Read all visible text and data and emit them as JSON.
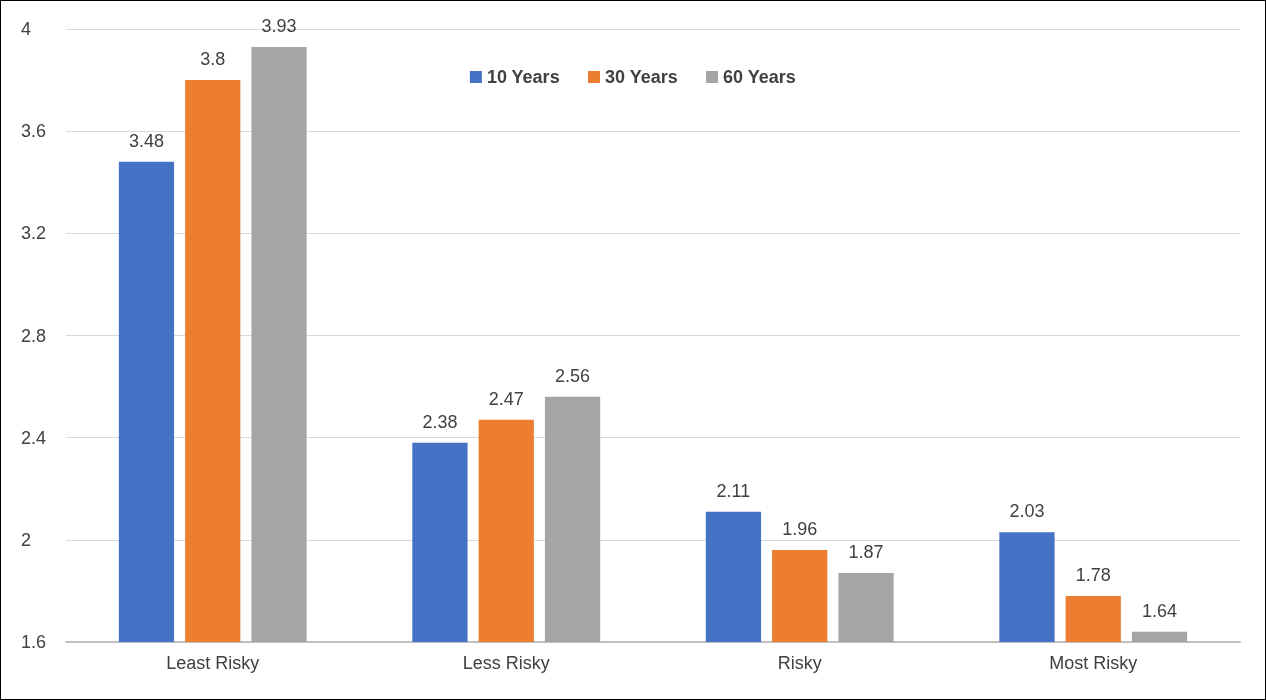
{
  "chart_data": {
    "type": "bar",
    "categories": [
      "Least Risky",
      "Less Risky",
      "Risky",
      "Most Risky"
    ],
    "series": [
      {
        "name": "10 Years",
        "color": "#4472c4",
        "values": [
          3.48,
          2.38,
          2.11,
          2.03
        ]
      },
      {
        "name": "30 Years",
        "color": "#ed7d31",
        "values": [
          3.8,
          2.47,
          1.96,
          1.78
        ]
      },
      {
        "name": "60 Years",
        "color": "#a5a5a5",
        "values": [
          3.93,
          2.56,
          1.87,
          1.64
        ]
      }
    ],
    "ylim": [
      1.6,
      4
    ],
    "yticks": [
      1.6,
      2,
      2.4,
      2.8,
      3.2,
      3.6,
      4
    ],
    "grid": "y",
    "legend": "top",
    "data_labels": true
  }
}
